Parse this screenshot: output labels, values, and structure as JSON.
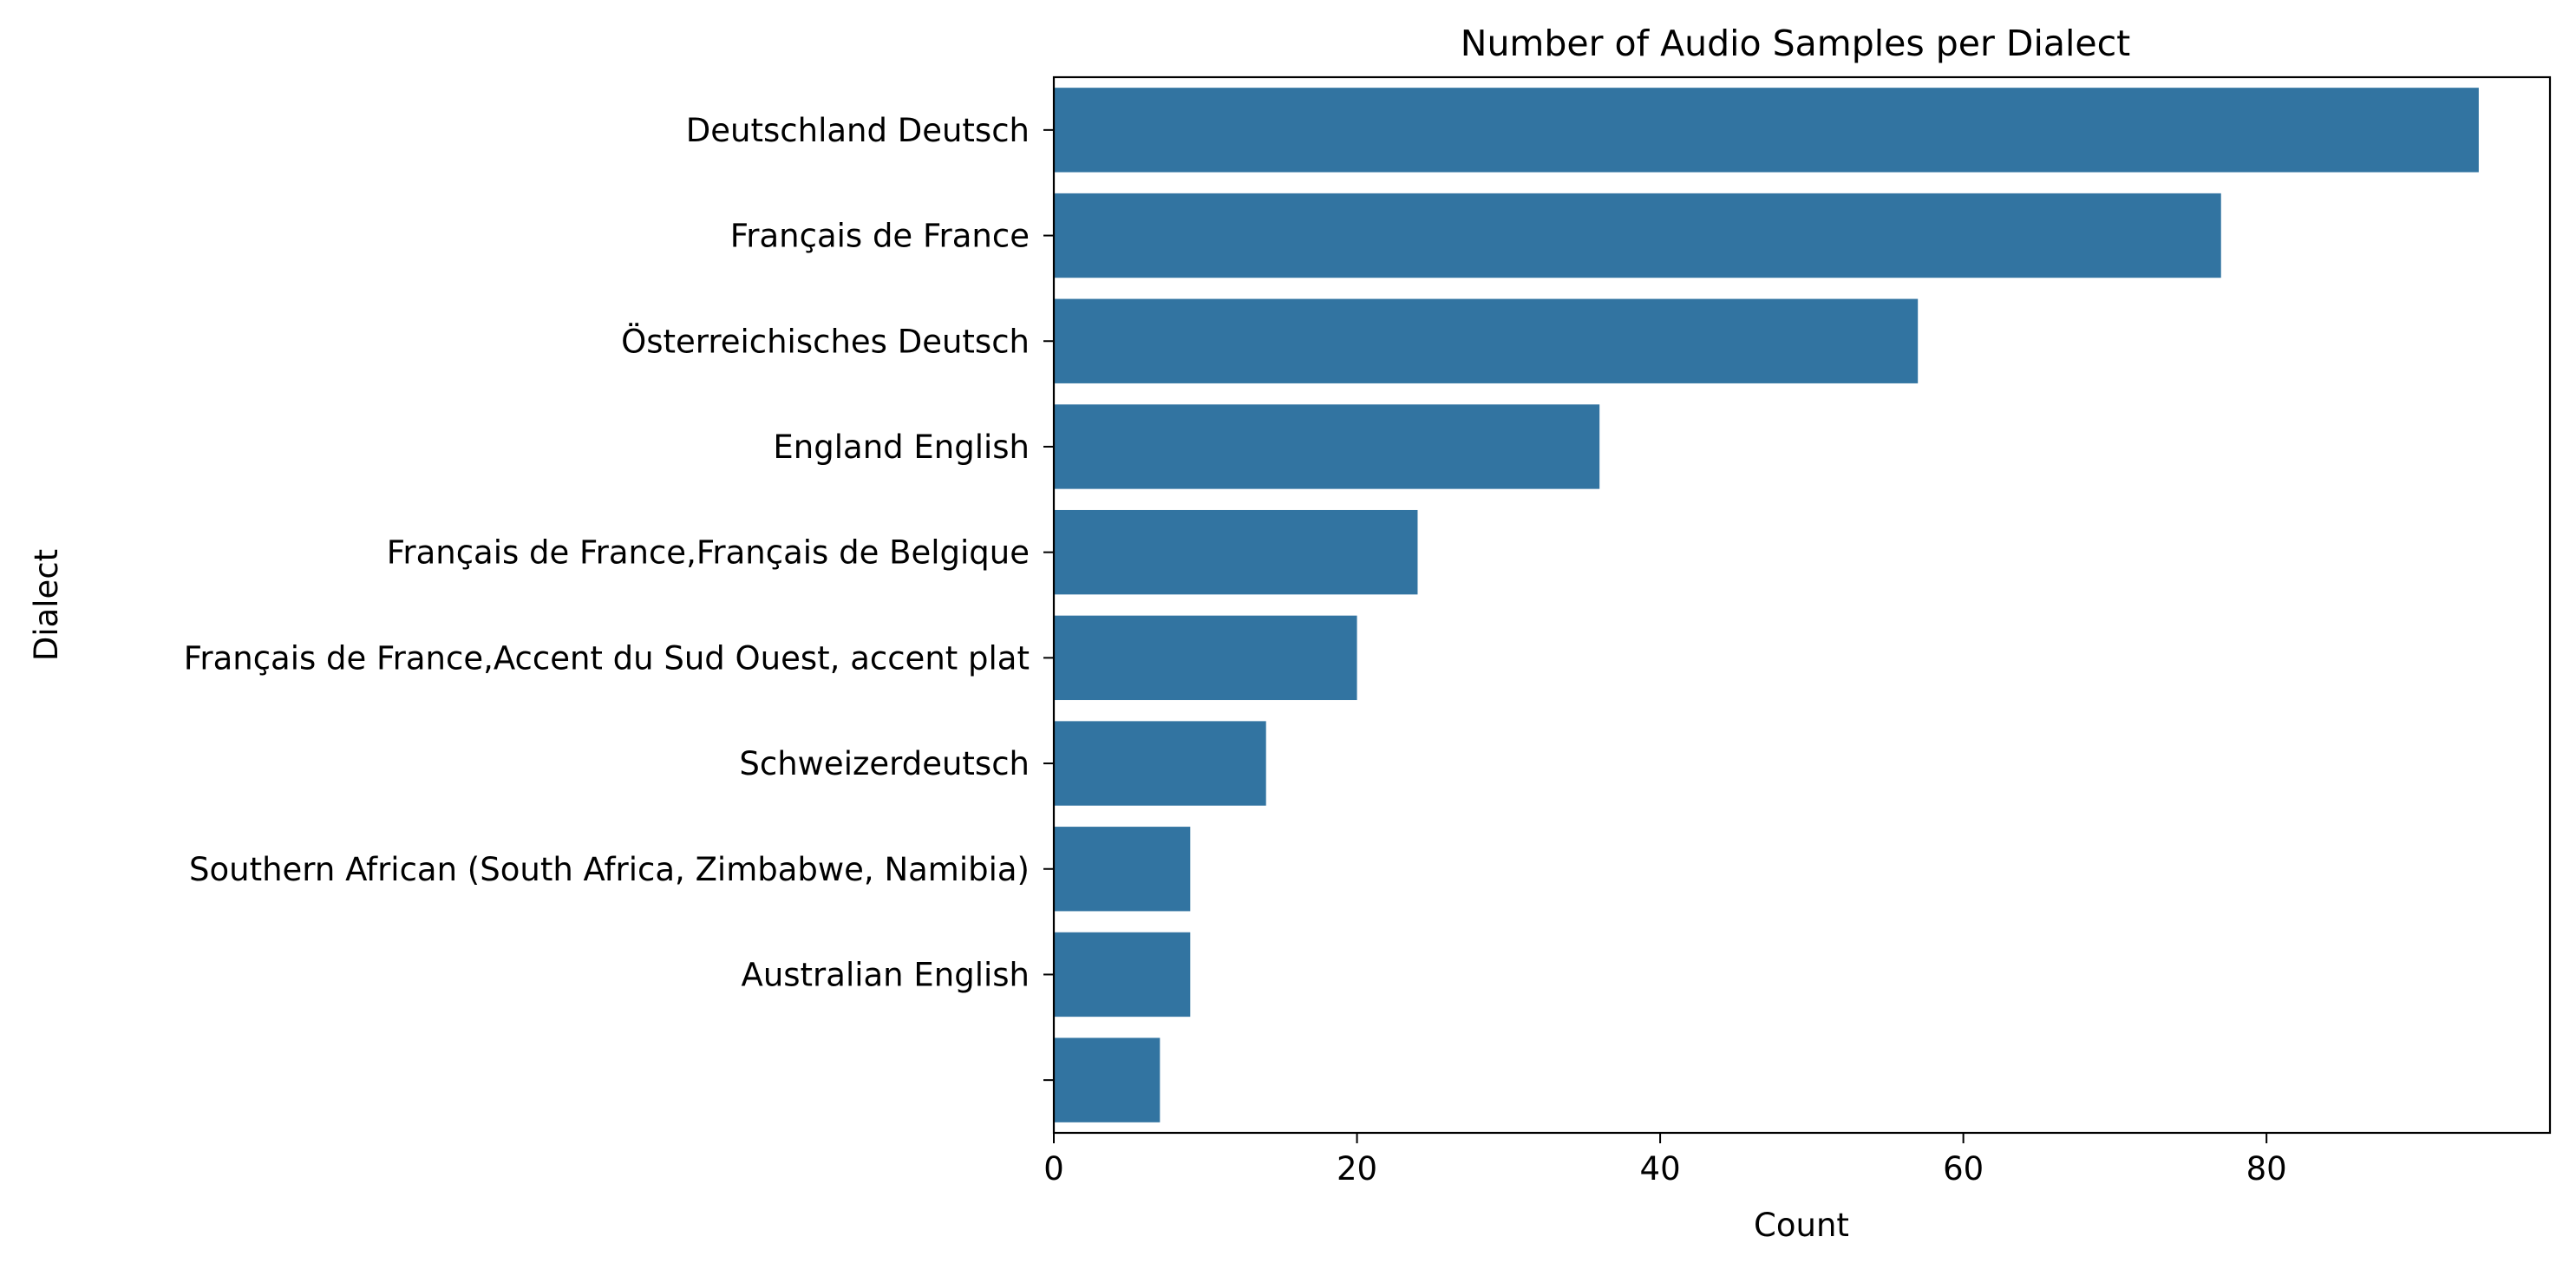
{
  "chart_data": {
    "type": "bar",
    "orientation": "horizontal",
    "title": "Number of Audio Samples per Dialect",
    "xlabel": "Count",
    "ylabel": "Dialect",
    "categories": [
      "Deutschland Deutsch",
      "Français de France",
      "Österreichisches Deutsch",
      "England English",
      "Français de France,Français de Belgique",
      "Français de France,Accent du Sud Ouest, accent plat",
      "Schweizerdeutsch",
      "Southern African (South Africa, Zimbabwe, Namibia)",
      "Australian English",
      ""
    ],
    "values": [
      94,
      77,
      57,
      36,
      24,
      20,
      14,
      9,
      9,
      7
    ],
    "xlim": [
      0,
      98.7
    ],
    "xticks": [
      0,
      20,
      40,
      60,
      80
    ],
    "grid": false,
    "legend": "none",
    "bar_color": "#3274a1"
  }
}
